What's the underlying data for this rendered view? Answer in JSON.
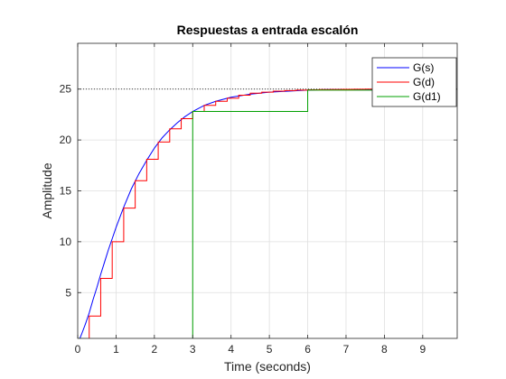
{
  "chart_data": {
    "type": "line",
    "title": "Respuestas a entrada escalón",
    "xlabel": "Time (seconds)",
    "ylabel": "Amplitude",
    "xlim": [
      0,
      9.9
    ],
    "ylim": [
      0.5,
      29.5
    ],
    "xticks": [
      0,
      1,
      2,
      3,
      4,
      5,
      6,
      7,
      8,
      9
    ],
    "yticks": [
      5,
      10,
      15,
      20,
      25
    ],
    "grid": true,
    "legend_position": "top-right",
    "reference_line": {
      "y": 25,
      "style": "dotted",
      "color": "#000000"
    },
    "series": [
      {
        "name": "G(s)",
        "color": "#0000ff",
        "kind": "continuous",
        "x": [
          0,
          0.1,
          0.2,
          0.3,
          0.4,
          0.5,
          0.6,
          0.7,
          0.8,
          0.9,
          1.0,
          1.2,
          1.4,
          1.6,
          1.8,
          2.0,
          2.2,
          2.4,
          2.6,
          2.8,
          3.0,
          3.3,
          3.6,
          4.0,
          4.5,
          5.0,
          5.5,
          6.0,
          6.5,
          7.0,
          7.5,
          8.0,
          8.5,
          9.0,
          9.5,
          9.9
        ],
        "y": [
          0,
          0.9,
          1.9,
          3.0,
          4.3,
          5.5,
          6.8,
          8.0,
          9.2,
          10.3,
          11.4,
          13.4,
          15.2,
          16.7,
          18.0,
          19.2,
          20.2,
          21.0,
          21.7,
          22.3,
          22.8,
          23.4,
          23.8,
          24.2,
          24.5,
          24.7,
          24.8,
          24.9,
          24.95,
          24.97,
          24.98,
          24.99,
          25.0,
          25.0,
          25.0,
          25.0
        ]
      },
      {
        "name": "G(d)",
        "color": "#ff0000",
        "kind": "stairs",
        "x": [
          0,
          0.3,
          0.6,
          0.9,
          1.2,
          1.5,
          1.8,
          2.1,
          2.4,
          2.7,
          3.0,
          3.3,
          3.6,
          3.9,
          4.2,
          4.5,
          4.8,
          5.1,
          5.4,
          5.7,
          6.0,
          6.3,
          6.6,
          6.9,
          7.2,
          7.5,
          7.8,
          8.1,
          8.4,
          8.7,
          9.0,
          9.3,
          9.6,
          9.9
        ],
        "y": [
          0,
          2.7,
          6.4,
          10.0,
          13.3,
          16.0,
          18.1,
          19.8,
          21.1,
          22.1,
          22.8,
          23.4,
          23.8,
          24.1,
          24.4,
          24.6,
          24.7,
          24.8,
          24.85,
          24.9,
          24.93,
          24.95,
          24.97,
          24.98,
          24.99,
          25.0,
          25.0,
          25.0,
          25.0,
          25.0,
          25.0,
          25.0,
          25.0,
          25.0
        ]
      },
      {
        "name": "G(d1)",
        "color": "#00a000",
        "kind": "stairs",
        "x": [
          0,
          3.0,
          6.0,
          9.0,
          9.9
        ],
        "y": [
          0,
          22.8,
          24.9,
          25.0,
          25.0
        ]
      }
    ]
  }
}
